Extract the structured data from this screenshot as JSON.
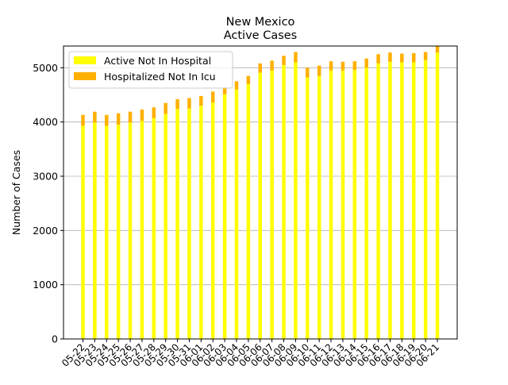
{
  "chart_data": {
    "type": "bar",
    "stacked": true,
    "title": "New Mexico",
    "subtitle": "Active Cases",
    "xlabel": "",
    "ylabel": "Number of Cases",
    "ylim": [
      0,
      5400
    ],
    "yticks": [
      0,
      1000,
      2000,
      3000,
      4000,
      5000
    ],
    "grid": "horizontal",
    "legend_position": "top-left",
    "categories": [
      "05-22",
      "05-23",
      "05-24",
      "05-25",
      "05-26",
      "05-27",
      "05-28",
      "05-29",
      "05-30",
      "05-31",
      "06-01",
      "06-02",
      "06-03",
      "06-04",
      "06-05",
      "06-06",
      "06-07",
      "06-08",
      "06-09",
      "06-10",
      "06-11",
      "06-12",
      "06-13",
      "06-14",
      "06-15",
      "06-16",
      "06-17",
      "06-18",
      "06-19",
      "06-20",
      "06-21"
    ],
    "series": [
      {
        "name": "Active Not In Hospital",
        "color": "#ffff00",
        "values": [
          3930,
          3990,
          3930,
          3950,
          3990,
          4020,
          4070,
          4150,
          4240,
          4250,
          4300,
          4360,
          4510,
          4600,
          4700,
          4910,
          4950,
          5050,
          5100,
          4820,
          4850,
          4950,
          4950,
          4960,
          5000,
          5080,
          5110,
          5100,
          5100,
          5140,
          5280
        ]
      },
      {
        "name": "Hospitalized Not In Icu",
        "color": "#ffb000",
        "values": [
          200,
          200,
          200,
          210,
          200,
          210,
          200,
          200,
          180,
          190,
          180,
          200,
          130,
          150,
          150,
          170,
          180,
          170,
          190,
          180,
          190,
          170,
          160,
          160,
          170,
          170,
          170,
          160,
          170,
          150,
          120
        ]
      }
    ]
  }
}
